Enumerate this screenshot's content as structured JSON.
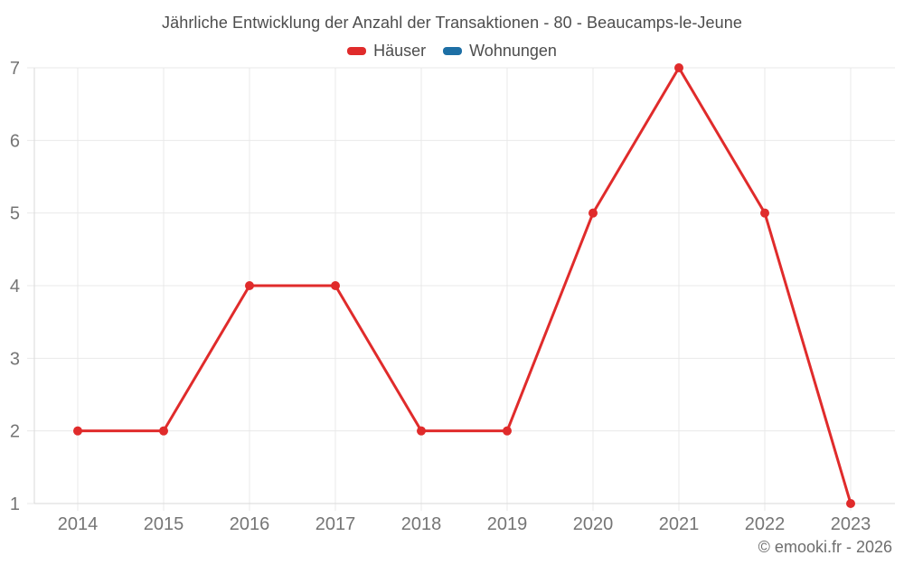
{
  "footer": "© emooki.fr - 2026",
  "colors": {
    "grid": "#e9e9e9",
    "axis": "#dadada",
    "tick_label": "#757575",
    "title_text": "#4d4d4d",
    "haeuser_red": "#e02b2b",
    "wohnungen_blue": "#1d6fa5"
  },
  "chart_data": {
    "type": "line",
    "title": "Jährliche Entwicklung der Anzahl der Transaktionen - 80 - Beaucamps-le-Jeune",
    "categories": [
      "2014",
      "2015",
      "2016",
      "2017",
      "2018",
      "2019",
      "2020",
      "2021",
      "2022",
      "2023"
    ],
    "series": [
      {
        "name": "Häuser",
        "color": "#e02b2b",
        "values": [
          2,
          2,
          4,
          4,
          2,
          2,
          5,
          7,
          5,
          1
        ]
      },
      {
        "name": "Wohnungen",
        "color": "#1d6fa5",
        "values": []
      }
    ],
    "xlabel": "",
    "ylabel": "",
    "ylim": [
      1,
      7
    ],
    "y_ticks": [
      1,
      2,
      3,
      4,
      5,
      6,
      7
    ],
    "grid": true,
    "legend_position": "top",
    "marker": "circle"
  }
}
